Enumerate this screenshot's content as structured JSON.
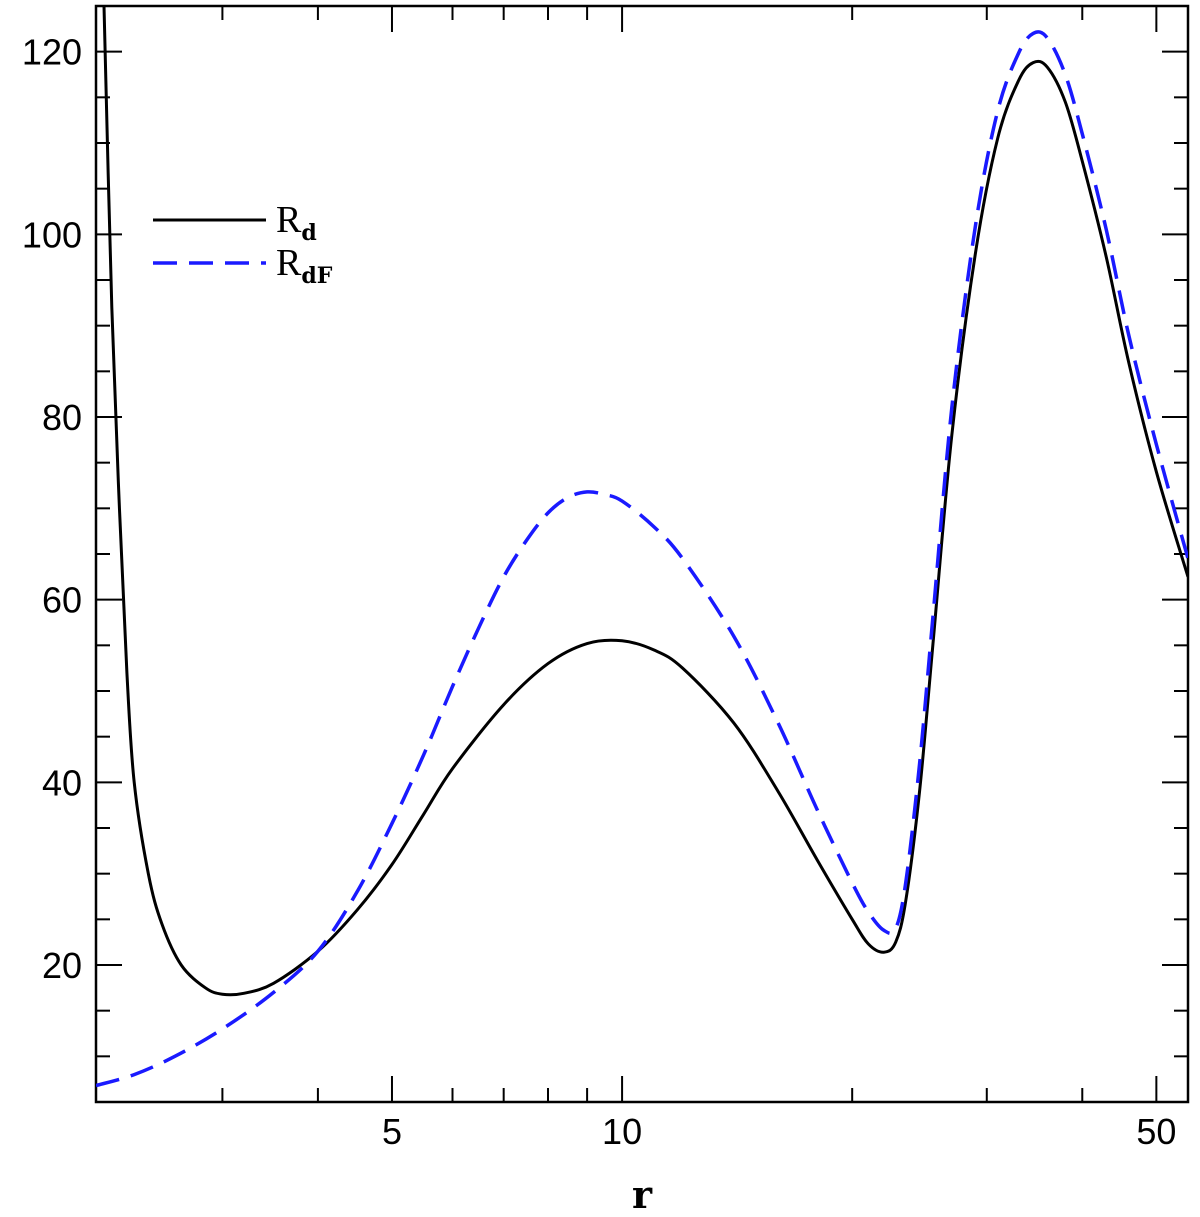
{
  "chart_data": {
    "type": "line",
    "title": "",
    "xlabel": "r",
    "ylabel": "",
    "xscale": "log",
    "xlim": [
      2.05,
      55
    ],
    "ylim": [
      5,
      125
    ],
    "xticks": [
      5,
      10,
      50
    ],
    "xminor": [
      3,
      4,
      6,
      7,
      8,
      9,
      20,
      30,
      40
    ],
    "yticks": [
      20,
      40,
      60,
      80,
      100,
      120
    ],
    "yminor_step": 5,
    "grid": false,
    "legend_position": "upper-left",
    "series": [
      {
        "name": "R_d",
        "legend_main": "R",
        "legend_sub": "d",
        "color": "#000000",
        "style": "solid",
        "points": [
          [
            2.1,
            125
          ],
          [
            2.15,
            92
          ],
          [
            2.2,
            70
          ],
          [
            2.25,
            52
          ],
          [
            2.3,
            40
          ],
          [
            2.4,
            30
          ],
          [
            2.5,
            24.5
          ],
          [
            2.65,
            20
          ],
          [
            2.85,
            17.5
          ],
          [
            3.0,
            16.8
          ],
          [
            3.2,
            16.9
          ],
          [
            3.5,
            18.0
          ],
          [
            4.0,
            21.5
          ],
          [
            4.5,
            26
          ],
          [
            5.0,
            31
          ],
          [
            5.5,
            36.5
          ],
          [
            6.0,
            41.5
          ],
          [
            7.0,
            48.5
          ],
          [
            8.0,
            53
          ],
          [
            9.0,
            55.2
          ],
          [
            10.0,
            55.5
          ],
          [
            11.0,
            54.5
          ],
          [
            12.0,
            52.5
          ],
          [
            14.0,
            46.5
          ],
          [
            16.0,
            39
          ],
          [
            18.0,
            31.5
          ],
          [
            20.0,
            25
          ],
          [
            21.0,
            22.3
          ],
          [
            22.0,
            21.4
          ],
          [
            22.8,
            22.5
          ],
          [
            23.5,
            27
          ],
          [
            24.5,
            39
          ],
          [
            25.5,
            55
          ],
          [
            27.0,
            78
          ],
          [
            29.0,
            98
          ],
          [
            31.0,
            110.5
          ],
          [
            33.0,
            116.8
          ],
          [
            34.5,
            118.8
          ],
          [
            36.0,
            118.3
          ],
          [
            38.0,
            114.5
          ],
          [
            40.0,
            108
          ],
          [
            43.0,
            97.5
          ],
          [
            46.0,
            86
          ],
          [
            50.0,
            74
          ],
          [
            55.0,
            62.5
          ]
        ]
      },
      {
        "name": "R_dF",
        "legend_main": "R",
        "legend_sub": "dF",
        "color": "#1a1aff",
        "style": "dashed",
        "points": [
          [
            2.05,
            6.8
          ],
          [
            2.3,
            8.0
          ],
          [
            2.6,
            10.0
          ],
          [
            3.0,
            13.0
          ],
          [
            3.5,
            17.0
          ],
          [
            4.0,
            21.5
          ],
          [
            4.5,
            28
          ],
          [
            5.0,
            35.5
          ],
          [
            5.5,
            43
          ],
          [
            6.0,
            50.5
          ],
          [
            6.5,
            57
          ],
          [
            7.0,
            62.5
          ],
          [
            7.5,
            66.5
          ],
          [
            8.0,
            69.5
          ],
          [
            8.5,
            71.2
          ],
          [
            9.0,
            71.8
          ],
          [
            9.5,
            71.5
          ],
          [
            10.0,
            70.8
          ],
          [
            11.0,
            68.0
          ],
          [
            12.0,
            64.5
          ],
          [
            14.0,
            56
          ],
          [
            16.0,
            46.5
          ],
          [
            18.0,
            37
          ],
          [
            20.0,
            29
          ],
          [
            21.0,
            25.8
          ],
          [
            22.0,
            23.8
          ],
          [
            22.8,
            24.0
          ],
          [
            23.5,
            29
          ],
          [
            24.5,
            42
          ],
          [
            25.5,
            58
          ],
          [
            27.0,
            81
          ],
          [
            29.0,
            101
          ],
          [
            31.0,
            113.5
          ],
          [
            33.0,
            119.8
          ],
          [
            34.5,
            122
          ],
          [
            36.0,
            121.5
          ],
          [
            38.0,
            117.5
          ],
          [
            40.0,
            111
          ],
          [
            43.0,
            100.5
          ],
          [
            46.0,
            89
          ],
          [
            50.0,
            77
          ],
          [
            55.0,
            64.5
          ]
        ]
      }
    ]
  }
}
